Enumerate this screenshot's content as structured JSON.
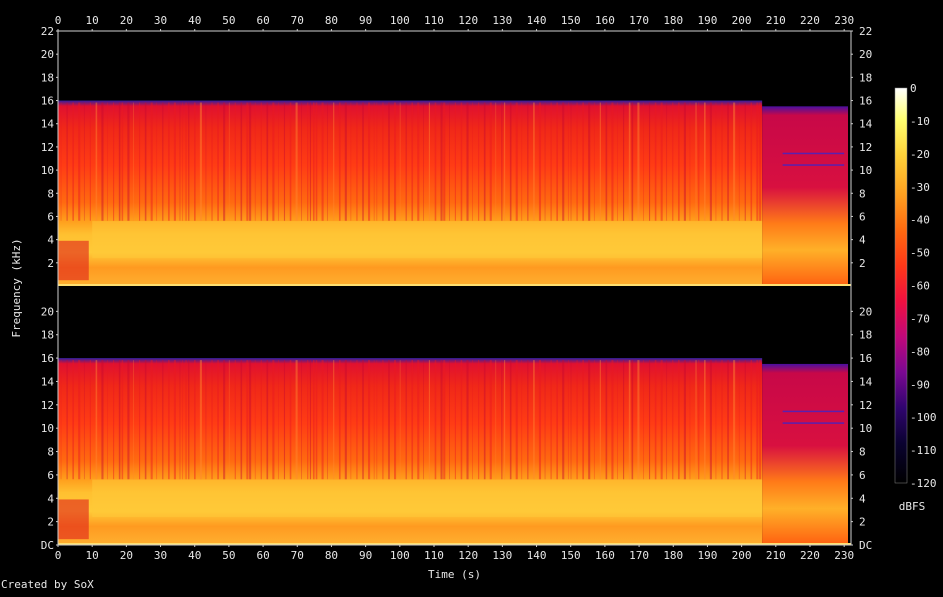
{
  "chart_data": {
    "type": "heatmap",
    "subtype": "spectrogram",
    "channels": 2,
    "xlabel": "Time (s)",
    "ylabel": "Frequency (kHz)",
    "x_ticks": [
      "0",
      "10",
      "20",
      "30",
      "40",
      "50",
      "60",
      "70",
      "80",
      "90",
      "100",
      "110",
      "120",
      "130",
      "140",
      "150",
      "160",
      "170",
      "180",
      "190",
      "200",
      "210",
      "220",
      "230"
    ],
    "y_ticks_top": [
      "2",
      "4",
      "6",
      "8",
      "10",
      "12",
      "14",
      "16",
      "18",
      "20",
      "22"
    ],
    "y_ticks_bottom": [
      "DC",
      "2",
      "4",
      "6",
      "8",
      "10",
      "12",
      "14",
      "16",
      "18",
      "20"
    ],
    "xlim": [
      0,
      232
    ],
    "ylim_khz": [
      0,
      22
    ],
    "spectral_cutoff_khz": 16,
    "late_cutoff_khz": 15.5,
    "late_section_start_s": 206,
    "end_s": 232,
    "colorbar": {
      "label": "dBFS",
      "ticks": [
        "0",
        "-10",
        "-20",
        "-30",
        "-40",
        "-50",
        "-60",
        "-70",
        "-80",
        "-90",
        "-100",
        "-110",
        "-120"
      ],
      "range": [
        -120,
        0
      ],
      "colors": [
        "#ffffff",
        "#ffff70",
        "#ffd23a",
        "#ffa020",
        "#ff6a10",
        "#ff3818",
        "#f01040",
        "#c0087a",
        "#7a0892",
        "#30046e",
        "#0a0230",
        "#000000"
      ]
    },
    "credit": "Created by SoX"
  }
}
